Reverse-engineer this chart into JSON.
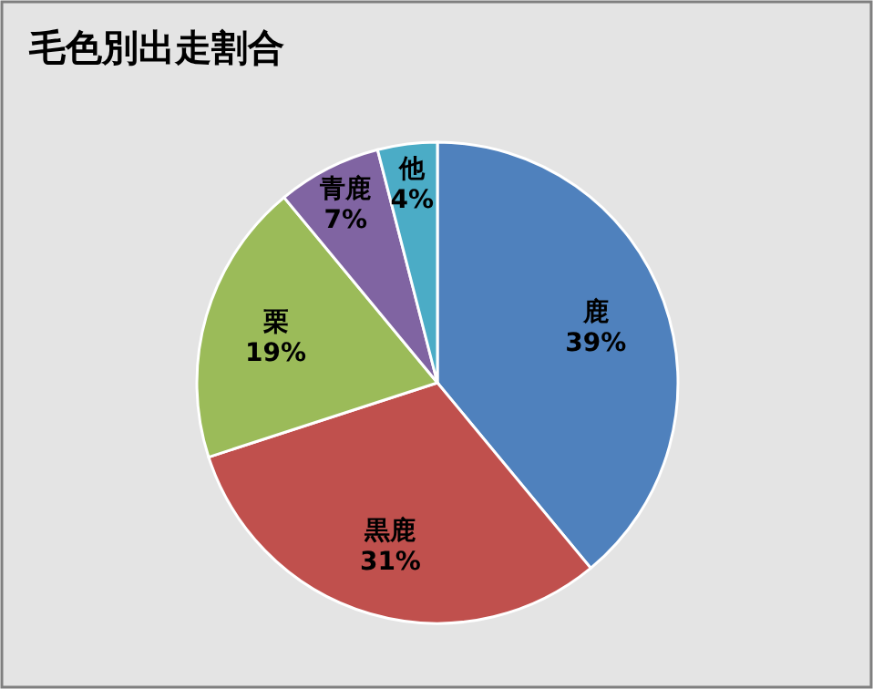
{
  "chart_data": {
    "type": "pie",
    "title": "毛色別出走割合",
    "categories": [
      "鹿",
      "黒鹿",
      "栗",
      "青鹿",
      "他"
    ],
    "values": [
      39,
      31,
      19,
      7,
      4
    ],
    "colors": [
      "#4f81bd",
      "#c0504d",
      "#9bbb59",
      "#8064a2",
      "#4bacc6"
    ],
    "value_labels": [
      "39%",
      "31%",
      "19%",
      "7%",
      "4%"
    ]
  }
}
